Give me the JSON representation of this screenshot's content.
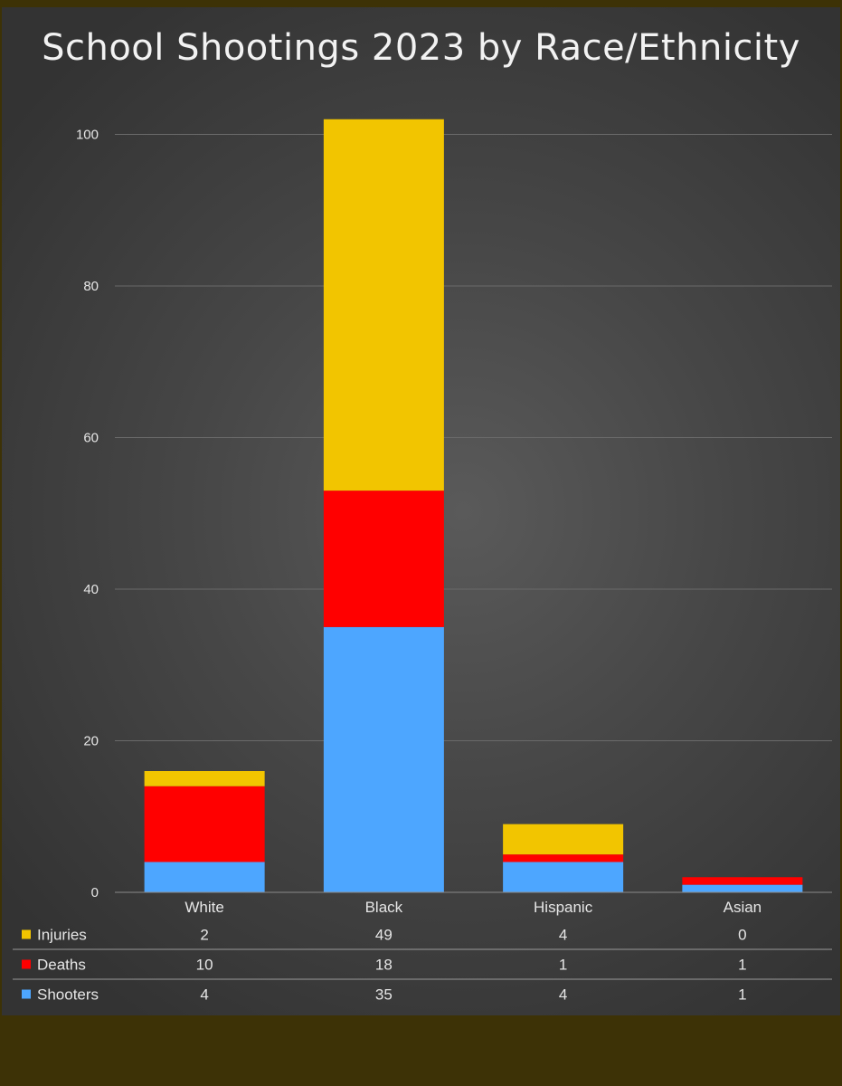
{
  "chart_data": {
    "type": "bar",
    "stacked": true,
    "title": "School Shootings 2023 by Race/Ethnicity",
    "categories": [
      "White",
      "Black",
      "Hispanic",
      "Asian"
    ],
    "series": [
      {
        "name": "Shooters",
        "values": [
          4,
          35,
          4,
          1
        ],
        "color": "#4da6ff"
      },
      {
        "name": "Deaths",
        "values": [
          10,
          18,
          1,
          1
        ],
        "color": "#ff0000"
      },
      {
        "name": "Injuries",
        "values": [
          2,
          49,
          4,
          0
        ],
        "color": "#f2c500"
      }
    ],
    "table_order": [
      "Injuries",
      "Deaths",
      "Shooters"
    ],
    "ylim": [
      0,
      102
    ],
    "yticks": [
      0,
      20,
      40,
      60,
      80,
      100
    ],
    "grid": true,
    "legend": "data-table-below"
  },
  "colors": {
    "background_outer": "#3d3206",
    "plot_background": "#474747",
    "grid": "#6a6a6a",
    "text": "#e6e6e6"
  }
}
